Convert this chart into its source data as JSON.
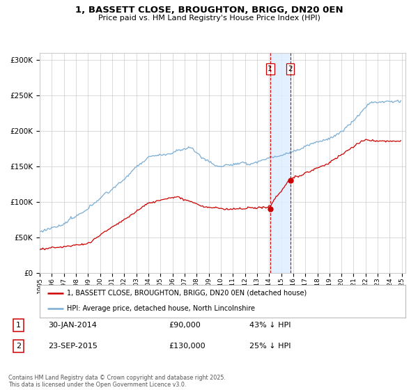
{
  "title_line1": "1, BASSETT CLOSE, BROUGHTON, BRIGG, DN20 0EN",
  "title_line2": "Price paid vs. HM Land Registry's House Price Index (HPI)",
  "legend_red": "1, BASSETT CLOSE, BROUGHTON, BRIGG, DN20 0EN (detached house)",
  "legend_blue": "HPI: Average price, detached house, North Lincolnshire",
  "transaction1_label": "1",
  "transaction1_date": "30-JAN-2014",
  "transaction1_price": "£90,000",
  "transaction1_hpi": "43% ↓ HPI",
  "transaction2_label": "2",
  "transaction2_date": "23-SEP-2015",
  "transaction2_price": "£130,000",
  "transaction2_hpi": "25% ↓ HPI",
  "footer": "Contains HM Land Registry data © Crown copyright and database right 2025.\nThis data is licensed under the Open Government Licence v3.0.",
  "red_color": "#cc0000",
  "blue_color": "#7aadd4",
  "shade_color": "#ddeeff",
  "background_color": "#ffffff",
  "grid_color": "#cccccc",
  "t1_year": 2014.08,
  "t2_year": 2015.75,
  "t1_price": 90000,
  "t2_price": 130000
}
